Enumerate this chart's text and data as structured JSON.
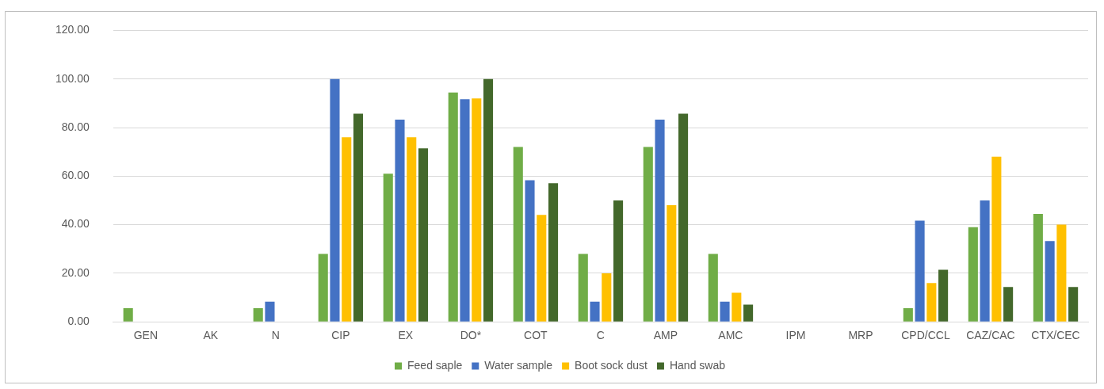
{
  "chart_data": {
    "type": "bar",
    "categories": [
      "GEN",
      "AK",
      "N",
      "CIP",
      "EX",
      "DO*",
      "COT",
      "C",
      "AMP",
      "AMC",
      "IPM",
      "MRP",
      "CPD/CCL",
      "CAZ/CAC",
      "CTX/CEC"
    ],
    "series": [
      {
        "name": "Feed saple",
        "color": "#70ad47",
        "values": [
          5.6,
          0,
          5.6,
          28,
          61,
          94.4,
          72,
          28,
          72,
          28,
          0,
          0,
          5.6,
          39,
          44.4
        ]
      },
      {
        "name": "Water sample",
        "color": "#4472c4",
        "values": [
          0,
          0,
          8.3,
          100,
          83.3,
          91.7,
          58.3,
          8.3,
          83.3,
          8.3,
          0,
          0,
          41.7,
          50,
          33.3
        ]
      },
      {
        "name": "Boot sock dust",
        "color": "#ffc000",
        "values": [
          0,
          0,
          0,
          76,
          76,
          92,
          44,
          20,
          48,
          12,
          0,
          0,
          16,
          68,
          40
        ]
      },
      {
        "name": "Hand swab",
        "color": "#43682b",
        "values": [
          0,
          0,
          0,
          85.7,
          71.4,
          100,
          57.1,
          50,
          85.7,
          7.1,
          0,
          0,
          21.4,
          14.3,
          14.3
        ]
      }
    ],
    "ylim": [
      0,
      120
    ],
    "yticks": [
      {
        "value": 0,
        "label": "0.00"
      },
      {
        "value": 20,
        "label": "20.00"
      },
      {
        "value": 40,
        "label": "40.00"
      },
      {
        "value": 60,
        "label": "60.00"
      },
      {
        "value": 80,
        "label": "80.00"
      },
      {
        "value": 100,
        "label": "100.00"
      },
      {
        "value": 120,
        "label": "120.00"
      }
    ],
    "grid": "y",
    "legend": "bottom"
  }
}
